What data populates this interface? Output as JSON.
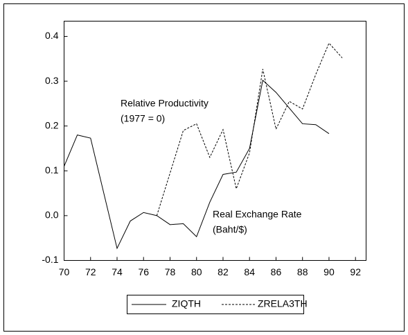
{
  "chart_data": {
    "type": "line",
    "x": [
      70,
      71,
      72,
      73,
      74,
      75,
      76,
      77,
      78,
      79,
      80,
      81,
      82,
      83,
      84,
      85,
      86,
      87,
      88,
      89,
      90,
      91
    ],
    "series": [
      {
        "name": "ZIQTH",
        "color": "#000000",
        "dash": "solid",
        "values": [
          0.11,
          0.18,
          0.173,
          0.05,
          -0.073,
          -0.012,
          0.007,
          0.0,
          -0.02,
          -0.018,
          -0.047,
          0.03,
          0.092,
          0.097,
          0.15,
          0.302,
          0.275,
          0.24,
          0.205,
          0.203,
          0.183,
          null
        ]
      },
      {
        "name": "ZRELA3TH",
        "color": "#000000",
        "dash": "dashed",
        "values": [
          null,
          null,
          null,
          null,
          null,
          null,
          null,
          0.0,
          0.095,
          0.19,
          0.205,
          0.13,
          0.192,
          0.06,
          0.14,
          0.327,
          0.193,
          0.255,
          0.238,
          0.315,
          0.385,
          0.352
        ]
      }
    ],
    "annotations": [
      {
        "lines": [
          "Relative Productivity",
          "(1977 = 0)"
        ]
      },
      {
        "lines": [
          "Real Exchange Rate",
          "(Baht/$)"
        ]
      }
    ],
    "xlim": [
      70,
      92.8
    ],
    "xticks": [
      70,
      72,
      74,
      76,
      78,
      80,
      82,
      84,
      86,
      88,
      90,
      92
    ],
    "ylim": [
      -0.1,
      0.434
    ],
    "yticks": [
      -0.1,
      {
        "value": 0,
        "label": "0.0"
      },
      0.1,
      0.2,
      0.3,
      0.4
    ],
    "legend": "bottom"
  }
}
